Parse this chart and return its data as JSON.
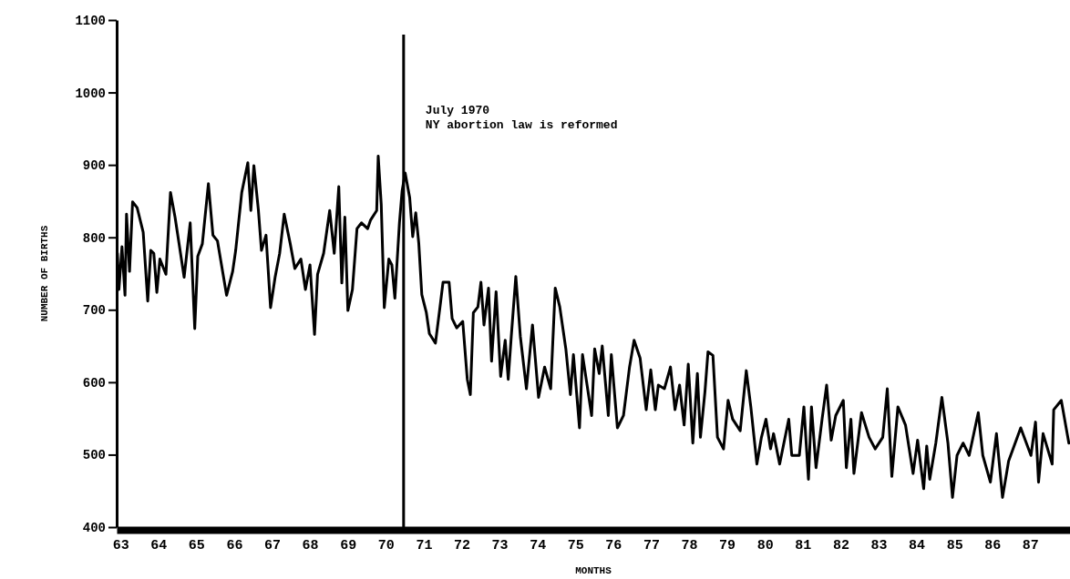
{
  "chart_data": {
    "type": "line",
    "xlabel": "MONTHS",
    "ylabel": "NUMBER OF BIRTHS",
    "xlim": [
      62.9,
      88.05
    ],
    "xticks": [
      63,
      64,
      65,
      66,
      67,
      68,
      69,
      70,
      71,
      72,
      73,
      74,
      75,
      76,
      77,
      78,
      79,
      80,
      81,
      82,
      83,
      84,
      85,
      86,
      87
    ],
    "ylim": [
      400,
      1100
    ],
    "yticks": [
      400,
      500,
      600,
      700,
      800,
      900,
      1000,
      1100
    ],
    "grid": false,
    "marker": "none",
    "line_style": "solid",
    "ref_lines": [
      {
        "axis": "x",
        "value": 70.47,
        "label": "July 1970\nNY abortion law is reformed",
        "color": "#000000"
      }
    ],
    "series": [
      {
        "color": "#000000",
        "x": [
          62.92,
          62.96,
          63.04,
          63.12,
          63.16,
          63.24,
          63.32,
          63.44,
          63.6,
          63.72,
          63.8,
          63.88,
          63.96,
          64.04,
          64.2,
          64.32,
          64.44,
          64.68,
          64.84,
          64.96,
          65.04,
          65.16,
          65.32,
          65.44,
          65.56,
          65.8,
          65.96,
          66.04,
          66.2,
          66.36,
          66.44,
          66.52,
          66.64,
          66.72,
          66.84,
          66.96,
          67.08,
          67.2,
          67.32,
          67.48,
          67.6,
          67.76,
          67.88,
          68,
          68.12,
          68.2,
          68.36,
          68.52,
          68.64,
          68.76,
          68.84,
          68.92,
          69,
          69.12,
          69.24,
          69.36,
          69.52,
          69.6,
          69.76,
          69.8,
          69.88,
          69.96,
          70.08,
          70.16,
          70.24,
          70.36,
          70.43,
          70.51,
          70.63,
          70.71,
          70.79,
          70.87,
          70.95,
          71.07,
          71.15,
          71.31,
          71.43,
          71.51,
          71.67,
          71.75,
          71.87,
          72.03,
          72.15,
          72.23,
          72.31,
          72.43,
          72.51,
          72.59,
          72.71,
          72.79,
          72.91,
          73.03,
          73.15,
          73.23,
          73.31,
          73.43,
          73.55,
          73.71,
          73.87,
          74.03,
          74.19,
          74.35,
          74.47,
          74.59,
          74.75,
          74.87,
          74.95,
          75.11,
          75.19,
          75.31,
          75.43,
          75.51,
          75.63,
          75.71,
          75.87,
          75.95,
          76.11,
          76.27,
          76.43,
          76.55,
          76.71,
          76.87,
          76.99,
          77.11,
          77.19,
          77.35,
          77.51,
          77.63,
          77.75,
          77.87,
          77.98,
          78.1,
          78.22,
          78.3,
          78.42,
          78.5,
          78.63,
          78.75,
          78.91,
          79.03,
          79.15,
          79.35,
          79.51,
          79.63,
          79.79,
          79.91,
          80.03,
          80.15,
          80.23,
          80.39,
          80.63,
          80.71,
          80.91,
          81.03,
          81.15,
          81.23,
          81.35,
          81.51,
          81.63,
          81.75,
          81.87,
          82.07,
          82.15,
          82.27,
          82.35,
          82.55,
          82.75,
          82.91,
          83.11,
          83.23,
          83.35,
          83.51,
          83.71,
          83.91,
          84.03,
          84.19,
          84.27,
          84.35,
          84.51,
          84.67,
          84.83,
          84.95,
          85.07,
          85.23,
          85.39,
          85.63,
          85.75,
          85.95,
          86.11,
          86.27,
          86.43,
          86.75,
          87.02,
          87.14,
          87.22,
          87.34,
          87.58,
          87.62,
          87.82,
          88.02
        ],
        "values": [
          778,
          728,
          787,
          720,
          832,
          753,
          849,
          841,
          807,
          712,
          782,
          778,
          724,
          770,
          749,
          862,
          828,
          745,
          820,
          674,
          774,
          791,
          874,
          803,
          795,
          720,
          753,
          782,
          862,
          903,
          837,
          899,
          837,
          782,
          803,
          703,
          745,
          778,
          832,
          791,
          757,
          770,
          728,
          762,
          666,
          749,
          778,
          837,
          778,
          870,
          737,
          828,
          699,
          728,
          812,
          820,
          812,
          824,
          837,
          912,
          845,
          703,
          770,
          762,
          716,
          820,
          864,
          889,
          855,
          801,
          834,
          792,
          721,
          696,
          667,
          654,
          704,
          738,
          738,
          688,
          675,
          684,
          604,
          583,
          696,
          704,
          738,
          679,
          730,
          629,
          725,
          608,
          658,
          604,
          663,
          746,
          663,
          591,
          679,
          579,
          621,
          591,
          730,
          704,
          646,
          583,
          638,
          537,
          638,
          596,
          554,
          646,
          612,
          650,
          554,
          638,
          537,
          554,
          621,
          658,
          633,
          562,
          617,
          562,
          596,
          591,
          621,
          562,
          596,
          541,
          625,
          516,
          612,
          524,
          587,
          642,
          637,
          524,
          508,
          575,
          549,
          533,
          616,
          566,
          487,
          524,
          549,
          508,
          529,
          487,
          549,
          499,
          499,
          566,
          466,
          566,
          482,
          549,
          596,
          520,
          554,
          575,
          482,
          549,
          474,
          558,
          524,
          508,
          524,
          591,
          470,
          566,
          541,
          474,
          520,
          453,
          512,
          466,
          516,
          579,
          516,
          441,
          499,
          516,
          499,
          558,
          499,
          462,
          529,
          441,
          491,
          537,
          499,
          545,
          462,
          529,
          487,
          562,
          575,
          516
        ]
      }
    ]
  }
}
